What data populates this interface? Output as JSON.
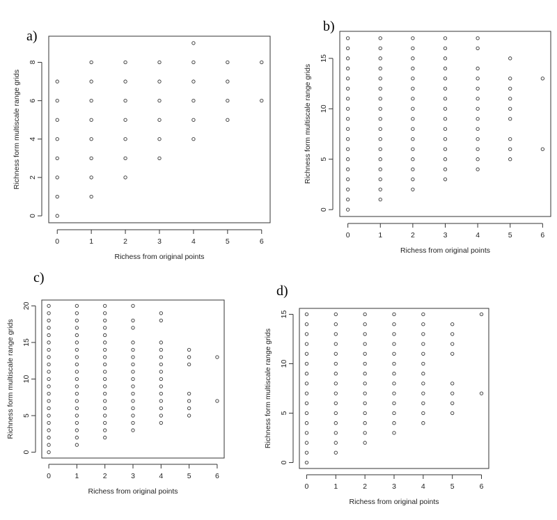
{
  "chart_data": [
    {
      "type": "scatter",
      "panel_label": "a)",
      "xlabel": "Richess from original points",
      "ylabel": "Richness form multiscale range grids",
      "xticks": [
        0,
        1,
        2,
        3,
        4,
        5,
        6
      ],
      "yticks": [
        0,
        2,
        4,
        6,
        8
      ],
      "xlim": [
        -0.25,
        6.25
      ],
      "ylim": [
        -0.36,
        9.36
      ],
      "points_by_x": [
        {
          "x": 0,
          "y": [
            0,
            1,
            2,
            3,
            4,
            5,
            6,
            7
          ]
        },
        {
          "x": 1,
          "y": [
            1,
            2,
            3,
            4,
            5,
            6,
            7,
            8
          ]
        },
        {
          "x": 2,
          "y": [
            2,
            3,
            4,
            5,
            6,
            7,
            8
          ]
        },
        {
          "x": 3,
          "y": [
            3,
            4,
            5,
            6,
            7,
            8
          ]
        },
        {
          "x": 4,
          "y": [
            4,
            5,
            6,
            7,
            8,
            9
          ]
        },
        {
          "x": 5,
          "y": [
            5,
            6,
            7,
            8
          ]
        },
        {
          "x": 6,
          "y": [
            6,
            8
          ]
        }
      ]
    },
    {
      "type": "scatter",
      "panel_label": "b)",
      "xlabel": "Richess from original points",
      "ylabel": "Richness form multiscale range grids",
      "xticks": [
        0,
        1,
        2,
        3,
        4,
        5,
        6
      ],
      "yticks": [
        0,
        5,
        10,
        15
      ],
      "xlim": [
        -0.25,
        6.25
      ],
      "ylim": [
        -0.68,
        17.68
      ],
      "points_by_x": [
        {
          "x": 0,
          "y": [
            0,
            1,
            2,
            3,
            4,
            5,
            6,
            7,
            8,
            9,
            10,
            11,
            12,
            13,
            14,
            15,
            16,
            17
          ]
        },
        {
          "x": 1,
          "y": [
            1,
            2,
            3,
            4,
            5,
            6,
            7,
            8,
            9,
            10,
            11,
            12,
            13,
            14,
            15,
            16,
            17
          ]
        },
        {
          "x": 2,
          "y": [
            2,
            3,
            4,
            5,
            6,
            7,
            8,
            9,
            10,
            11,
            12,
            13,
            14,
            15,
            16,
            17
          ]
        },
        {
          "x": 3,
          "y": [
            3,
            4,
            5,
            6,
            7,
            8,
            9,
            10,
            11,
            12,
            13,
            14,
            15,
            16,
            17
          ]
        },
        {
          "x": 4,
          "y": [
            4,
            5,
            6,
            7,
            8,
            9,
            10,
            11,
            12,
            13,
            14,
            16,
            17
          ]
        },
        {
          "x": 5,
          "y": [
            5,
            6,
            7,
            9,
            10,
            11,
            12,
            13,
            15
          ]
        },
        {
          "x": 6,
          "y": [
            6,
            13
          ]
        }
      ]
    },
    {
      "type": "scatter",
      "panel_label": "c)",
      "xlabel": "Richess from original points",
      "ylabel": "Richness form multiscale range grids",
      "xticks": [
        0,
        1,
        2,
        3,
        4,
        5,
        6
      ],
      "yticks": [
        0,
        5,
        10,
        15,
        20
      ],
      "xlim": [
        -0.25,
        6.25
      ],
      "ylim": [
        -0.8,
        20.8
      ],
      "points_by_x": [
        {
          "x": 0,
          "y": [
            0,
            1,
            2,
            3,
            4,
            5,
            6,
            7,
            8,
            9,
            10,
            11,
            12,
            13,
            14,
            15,
            16,
            17,
            18,
            19,
            20
          ]
        },
        {
          "x": 1,
          "y": [
            1,
            2,
            3,
            4,
            5,
            6,
            7,
            8,
            9,
            10,
            11,
            12,
            13,
            14,
            15,
            16,
            17,
            18,
            19,
            20
          ]
        },
        {
          "x": 2,
          "y": [
            2,
            3,
            4,
            5,
            6,
            7,
            8,
            9,
            10,
            11,
            12,
            13,
            14,
            15,
            16,
            17,
            18,
            19,
            20
          ]
        },
        {
          "x": 3,
          "y": [
            3,
            4,
            5,
            6,
            7,
            8,
            9,
            10,
            11,
            12,
            13,
            14,
            15,
            17,
            18,
            20
          ]
        },
        {
          "x": 4,
          "y": [
            4,
            5,
            6,
            7,
            8,
            9,
            10,
            11,
            12,
            13,
            14,
            15,
            18,
            19
          ]
        },
        {
          "x": 5,
          "y": [
            5,
            6,
            7,
            8,
            12,
            13,
            14
          ]
        },
        {
          "x": 6,
          "y": [
            7,
            13
          ]
        }
      ]
    },
    {
      "type": "scatter",
      "panel_label": "d)",
      "xlabel": "Richess from original points",
      "ylabel": "Richness form multiscale range grids",
      "xticks": [
        0,
        1,
        2,
        3,
        4,
        5,
        6
      ],
      "yticks": [
        0,
        5,
        10,
        15
      ],
      "xlim": [
        -0.25,
        6.25
      ],
      "ylim": [
        -0.6,
        15.6
      ],
      "points_by_x": [
        {
          "x": 0,
          "y": [
            0,
            1,
            2,
            3,
            4,
            5,
            6,
            7,
            8,
            9,
            10,
            11,
            12,
            13,
            14,
            15
          ]
        },
        {
          "x": 1,
          "y": [
            1,
            2,
            3,
            4,
            5,
            6,
            7,
            8,
            9,
            10,
            11,
            12,
            13,
            14,
            15
          ]
        },
        {
          "x": 2,
          "y": [
            2,
            3,
            4,
            5,
            6,
            7,
            8,
            9,
            10,
            11,
            12,
            13,
            14,
            15
          ]
        },
        {
          "x": 3,
          "y": [
            3,
            4,
            5,
            6,
            7,
            8,
            9,
            10,
            11,
            12,
            13,
            14,
            15
          ]
        },
        {
          "x": 4,
          "y": [
            4,
            5,
            6,
            7,
            8,
            9,
            10,
            11,
            12,
            13,
            14,
            15
          ]
        },
        {
          "x": 5,
          "y": [
            5,
            6,
            7,
            8,
            11,
            12,
            13,
            14
          ]
        },
        {
          "x": 6,
          "y": [
            7,
            15
          ]
        }
      ]
    }
  ]
}
